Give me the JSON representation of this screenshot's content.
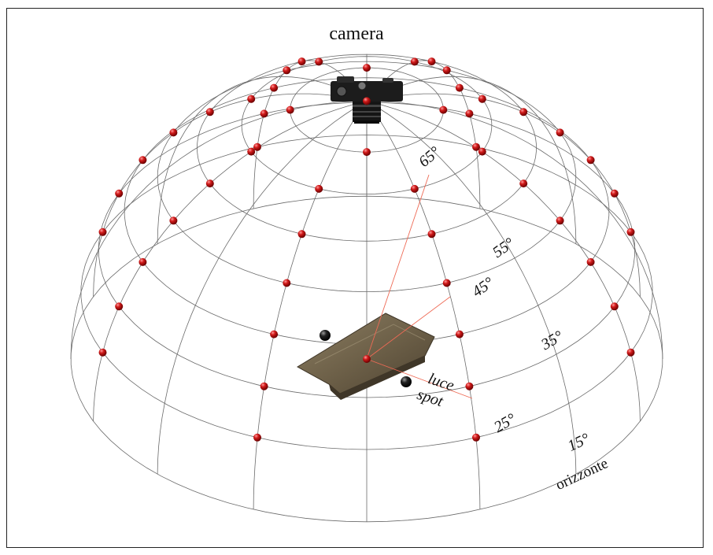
{
  "title": "camera",
  "angles": {
    "a65": "65°",
    "a55": "55°",
    "a45": "45°",
    "a35": "35°",
    "a25": "25°",
    "a15": "15°"
  },
  "horizon_label": "orizzonte",
  "light_label": {
    "line1": "luce",
    "line2": "spot"
  },
  "icons": {
    "camera": "camera-icon",
    "light": "light-sphere-marker",
    "sample": "stone-sample"
  },
  "colors": {
    "marker": "#c41414",
    "line": "#6b6b6b",
    "ray": "#ee6a55",
    "sphere": "#111111"
  }
}
